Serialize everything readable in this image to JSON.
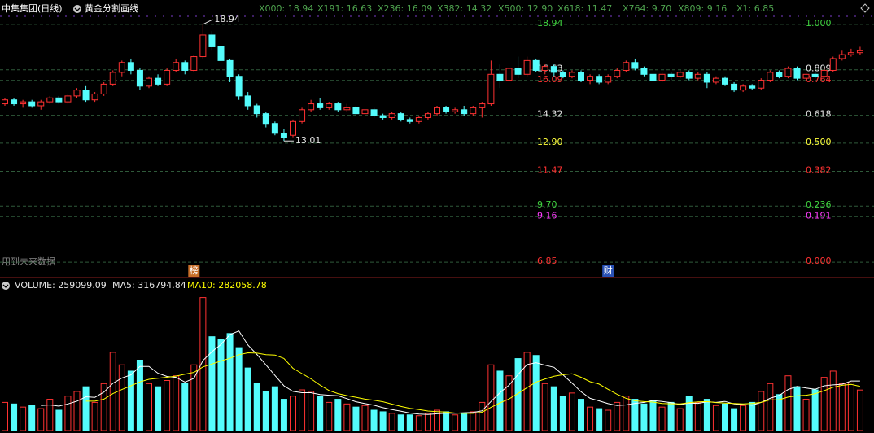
{
  "header": {
    "title": "中集集团(日线)",
    "tool": "黄金分割画线",
    "levels": [
      "X000: 18.94",
      "X191: 16.63",
      "X236: 16.09",
      "X382: 14.32",
      "X500: 12.90",
      "X618: 11.47",
      "X764: 9.70",
      "X809: 9.16",
      "X1: 6.85"
    ],
    "level_color": "#4ea24e"
  },
  "chart_data": {
    "type": "candlestick",
    "ylim": [
      6.11,
      19.35
    ],
    "up_color": "#ff3232",
    "down_color": "#54fcfc",
    "open": [
      14.9,
      15.1,
      14.9,
      15.0,
      14.8,
      15.0,
      15.2,
      15.0,
      15.3,
      15.6,
      15.1,
      15.4,
      15.9,
      16.5,
      17.0,
      16.6,
      15.8,
      16.2,
      15.9,
      16.6,
      17.0,
      16.6,
      17.3,
      18.4,
      17.8,
      17.1,
      16.3,
      15.3,
      14.8,
      14.4,
      13.9,
      13.4,
      13.3,
      14.0,
      14.6,
      14.9,
      14.7,
      14.9,
      14.6,
      14.7,
      14.4,
      14.6,
      14.3,
      14.2,
      14.4,
      14.1,
      14.0,
      14.2,
      14.4,
      14.7,
      14.5,
      14.6,
      14.4,
      14.7,
      14.9,
      16.4,
      16.1,
      16.7,
      16.4,
      17.1,
      16.6,
      16.8,
      16.5,
      16.3,
      16.5,
      16.1,
      16.3,
      16.0,
      16.3,
      16.6,
      17.0,
      16.7,
      16.4,
      16.1,
      16.4,
      16.3,
      16.5,
      16.2,
      16.4,
      16.0,
      16.2,
      15.9,
      15.6,
      15.8,
      15.7,
      16.1,
      16.5,
      16.3,
      16.7,
      16.2,
      16.4,
      16.3,
      16.6,
      17.2,
      17.4,
      17.5
    ],
    "high": [
      15.2,
      15.2,
      15.1,
      15.1,
      15.1,
      15.3,
      15.3,
      15.4,
      15.7,
      15.8,
      15.5,
      16.0,
      16.6,
      17.1,
      17.2,
      16.7,
      16.3,
      16.4,
      16.7,
      17.2,
      17.1,
      17.4,
      18.94,
      18.6,
      18.0,
      17.2,
      16.4,
      15.5,
      14.9,
      14.5,
      14.0,
      13.6,
      14.1,
      14.7,
      15.1,
      15.2,
      15.0,
      15.0,
      14.9,
      14.8,
      14.7,
      14.7,
      14.4,
      14.5,
      14.5,
      14.2,
      14.3,
      14.5,
      14.8,
      14.8,
      14.7,
      14.8,
      14.8,
      15.0,
      17.1,
      16.9,
      16.8,
      17.3,
      17.3,
      17.2,
      16.9,
      16.9,
      16.6,
      16.6,
      16.6,
      16.4,
      16.4,
      16.4,
      16.7,
      17.1,
      17.2,
      16.8,
      16.5,
      16.5,
      16.5,
      16.6,
      16.6,
      16.5,
      16.5,
      16.3,
      16.3,
      16.0,
      15.9,
      15.9,
      16.2,
      16.6,
      16.6,
      16.8,
      16.8,
      16.5,
      16.5,
      16.7,
      17.3,
      17.6,
      17.7,
      17.8
    ],
    "low": [
      14.8,
      14.8,
      14.7,
      14.7,
      14.6,
      14.9,
      14.9,
      14.9,
      15.2,
      15.0,
      15.0,
      15.3,
      15.8,
      16.3,
      16.4,
      15.6,
      15.7,
      15.8,
      15.8,
      16.5,
      16.4,
      16.5,
      17.2,
      17.6,
      16.9,
      16.0,
      15.1,
      14.6,
      14.2,
      13.7,
      13.3,
      13.01,
      13.2,
      13.9,
      14.5,
      14.6,
      14.6,
      14.5,
      14.5,
      14.3,
      14.3,
      14.2,
      14.1,
      14.1,
      14.0,
      13.9,
      13.9,
      14.1,
      14.3,
      14.4,
      14.4,
      14.3,
      14.3,
      14.2,
      14.8,
      15.7,
      16.0,
      16.2,
      16.3,
      16.5,
      16.4,
      16.3,
      16.2,
      16.2,
      16.0,
      15.9,
      15.9,
      15.9,
      16.2,
      16.5,
      16.6,
      16.3,
      16.0,
      16.0,
      16.1,
      16.2,
      16.1,
      16.1,
      15.7,
      15.9,
      15.8,
      15.5,
      15.5,
      15.6,
      15.6,
      16.0,
      16.2,
      16.2,
      16.1,
      16.1,
      16.2,
      16.2,
      16.5,
      17.1,
      17.3,
      17.4
    ],
    "close": [
      15.1,
      14.9,
      15.0,
      14.8,
      15.0,
      15.2,
      15.0,
      15.3,
      15.6,
      15.1,
      15.4,
      15.9,
      16.5,
      17.0,
      16.6,
      15.8,
      16.2,
      15.9,
      16.6,
      17.0,
      16.6,
      17.3,
      18.4,
      17.8,
      17.1,
      16.3,
      15.3,
      14.8,
      14.4,
      13.9,
      13.4,
      13.2,
      14.0,
      14.6,
      14.9,
      14.7,
      14.9,
      14.6,
      14.7,
      14.4,
      14.6,
      14.3,
      14.2,
      14.4,
      14.1,
      14.0,
      14.2,
      14.4,
      14.7,
      14.5,
      14.6,
      14.4,
      14.7,
      14.9,
      16.4,
      16.1,
      16.7,
      16.4,
      17.1,
      16.6,
      16.8,
      16.5,
      16.3,
      16.5,
      16.1,
      16.3,
      16.0,
      16.3,
      16.6,
      17.0,
      16.7,
      16.4,
      16.1,
      16.4,
      16.3,
      16.5,
      16.2,
      16.4,
      16.0,
      16.2,
      15.9,
      15.6,
      15.8,
      15.7,
      16.1,
      16.5,
      16.3,
      16.7,
      16.2,
      16.4,
      16.3,
      16.6,
      17.2,
      17.4,
      17.5,
      17.6
    ],
    "high_label": 18.94,
    "low_label": 13.01,
    "fib_levels": [
      {
        "price": 18.94,
        "ratio": {
          "value": 1,
          "label": "1.000"
        },
        "color": "#3fd23f"
      },
      {
        "price": 16.63,
        "ratio": 0.809,
        "color": "#e6e6e6"
      },
      {
        "price": 16.09,
        "ratio": 0.764,
        "color": "#ff3232"
      },
      {
        "price": 14.32,
        "ratio": 0.618,
        "color": "#e6e6e6"
      },
      {
        "price": {
          "value": 12.9,
          "label": "12.90"
        },
        "ratio": {
          "value": 0.5,
          "label": "0.500"
        },
        "color": "#ffff3c"
      },
      {
        "price": 11.47,
        "ratio": 0.382,
        "color": "#ff3232"
      },
      {
        "price": {
          "value": 9.7,
          "label": "9.70"
        },
        "ratio": 0.236,
        "color": "#3fd23f"
      },
      {
        "price": 9.16,
        "ratio": 0.191,
        "color": "#ff3cff"
      },
      {
        "price": 6.85,
        "ratio": {
          "value": 0,
          "label": "0.000"
        },
        "color": "#ff3232"
      }
    ],
    "note": "用到未来数据",
    "events": [
      {
        "index": 21,
        "label": "榜",
        "color": "#c86e28"
      },
      {
        "index": 67,
        "label": "财",
        "color": "#2850b4"
      }
    ],
    "volume": {
      "title": "VOLUME: 259099.09",
      "ma5_label": "MA5: 316794.84",
      "ma10_label": "MA10: 282058.78",
      "ylim": [
        0,
        900000
      ],
      "ma5_color": "#ffffff",
      "ma10_color": "#ffff00",
      "values": [
        180000,
        170000,
        150000,
        160000,
        140000,
        200000,
        130000,
        220000,
        250000,
        280000,
        180000,
        300000,
        500000,
        420000,
        380000,
        450000,
        300000,
        280000,
        320000,
        350000,
        300000,
        420000,
        850000,
        600000,
        580000,
        620000,
        530000,
        400000,
        300000,
        250000,
        280000,
        200000,
        220000,
        260000,
        250000,
        220000,
        180000,
        200000,
        170000,
        150000,
        160000,
        130000,
        120000,
        110000,
        100000,
        100000,
        95000,
        110000,
        130000,
        120000,
        100000,
        110000,
        120000,
        180000,
        420000,
        380000,
        350000,
        460000,
        500000,
        480000,
        300000,
        280000,
        220000,
        240000,
        200000,
        150000,
        140000,
        130000,
        180000,
        220000,
        200000,
        170000,
        190000,
        150000,
        180000,
        140000,
        220000,
        180000,
        200000,
        160000,
        170000,
        140000,
        160000,
        180000,
        250000,
        300000,
        230000,
        350000,
        280000,
        200000,
        260000,
        340000,
        380000,
        300000,
        305000,
        259099.09
      ],
      "ma5": [
        null,
        null,
        null,
        null,
        160000,
        164000,
        156000,
        170000,
        188000,
        216000,
        212000,
        246000,
        302000,
        336000,
        356000,
        410000,
        410000,
        366000,
        346000,
        340000,
        310000,
        334000,
        448000,
        504000,
        550000,
        614000,
        636000,
        546000,
        486000,
        420000,
        352000,
        286000,
        250000,
        242000,
        242000,
        230000,
        226000,
        222000,
        204000,
        184000,
        172000,
        162000,
        146000,
        134000,
        124000,
        112000,
        105000,
        103000,
        107000,
        111000,
        111000,
        114000,
        116000,
        126000,
        186000,
        242000,
        290000,
        358000,
        422000,
        434000,
        418000,
        404000,
        356000,
        304000,
        248000,
        206000,
        190000,
        172000,
        160000,
        164000,
        174000,
        180000,
        192000,
        186000,
        178000,
        166000,
        176000,
        174000,
        184000,
        180000,
        186000,
        170000,
        166000,
        162000,
        180000,
        206000,
        224000,
        262000,
        282000,
        272000,
        264000,
        286000,
        292000,
        296000,
        317000,
        316794.84
      ],
      "ma10": [
        null,
        null,
        null,
        null,
        null,
        null,
        null,
        null,
        null,
        188000,
        188000,
        201000,
        236000,
        262000,
        286000,
        311000,
        328000,
        334000,
        341000,
        348000,
        360000,
        372000,
        407000,
        425000,
        445000,
        462000,
        485000,
        497000,
        495000,
        485000,
        483000,
        461000,
        398000,
        364000,
        331000,
        291000,
        256000,
        236000,
        223000,
        213000,
        201000,
        194000,
        184000,
        169000,
        154000,
        142000,
        134000,
        125000,
        121000,
        118000,
        112000,
        110000,
        110000,
        117000,
        149000,
        177000,
        202000,
        237000,
        274000,
        310000,
        330000,
        347000,
        357000,
        363000,
        341000,
        312000,
        297000,
        264000,
        232000,
        206000,
        190000,
        185000,
        182000,
        173000,
        171000,
        170000,
        178000,
        183000,
        185000,
        179000,
        176000,
        173000,
        170000,
        173000,
        180000,
        196000,
        197000,
        214000,
        222000,
        226000,
        235000,
        255000,
        277000,
        289000,
        295000,
        282058.78
      ]
    }
  }
}
